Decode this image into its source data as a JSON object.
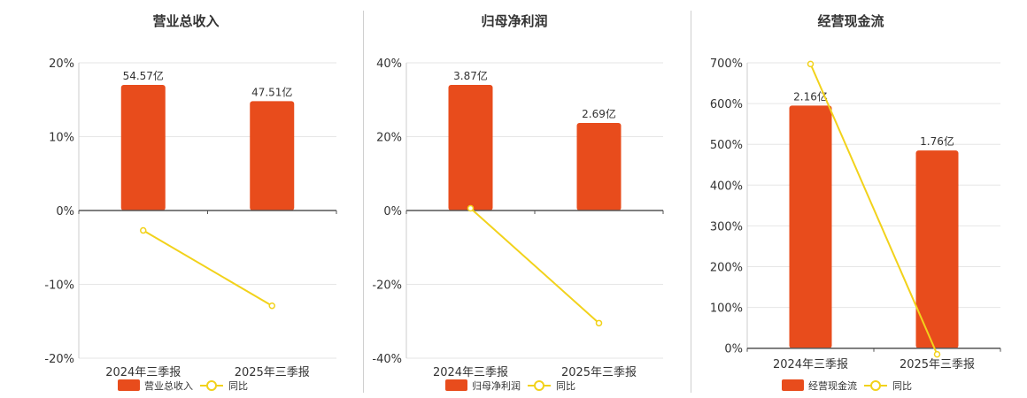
{
  "colors": {
    "bar": "#E84C1C",
    "line": "#F2D21B",
    "grid": "#E6E6E6",
    "axis": "#555555",
    "text": "#333333"
  },
  "chart_data": [
    {
      "type": "bar",
      "title": "营业总收入",
      "categories": [
        "2024年三季报",
        "2025年三季报"
      ],
      "series": [
        {
          "name": "营业总收入",
          "type": "bar",
          "values": [
            17.0,
            14.8
          ],
          "labels": [
            "54.57亿",
            "47.51亿"
          ]
        },
        {
          "name": "同比",
          "type": "line",
          "values": [
            -2.7,
            -12.9
          ]
        }
      ],
      "ylim": [
        -20,
        20
      ],
      "yticks": [
        -20,
        -10,
        0,
        10,
        20
      ],
      "ytick_labels": [
        "-20%",
        "-10%",
        "0%",
        "10%",
        "20%"
      ],
      "grid": true,
      "legend": "bottom-center"
    },
    {
      "type": "bar",
      "title": "归母净利润",
      "categories": [
        "2024年三季报",
        "2025年三季报"
      ],
      "series": [
        {
          "name": "归母净利润",
          "type": "bar",
          "values": [
            34.0,
            23.7
          ],
          "labels": [
            "3.87亿",
            "2.69亿"
          ]
        },
        {
          "name": "同比",
          "type": "line",
          "values": [
            0.6,
            -30.5
          ]
        }
      ],
      "ylim": [
        -40,
        40
      ],
      "yticks": [
        -40,
        -20,
        0,
        20,
        40
      ],
      "ytick_labels": [
        "-40%",
        "-20%",
        "0%",
        "20%",
        "40%"
      ],
      "grid": true,
      "legend": "bottom-center"
    },
    {
      "type": "bar",
      "title": "经营现金流",
      "categories": [
        "2024年三季报",
        "2025年三季报"
      ],
      "series": [
        {
          "name": "经营现金流",
          "type": "bar",
          "values": [
            595,
            485
          ],
          "labels": [
            "2.16亿",
            "1.76亿"
          ]
        },
        {
          "name": "同比",
          "type": "line",
          "values": [
            697,
            -15
          ]
        }
      ],
      "ylim": [
        -5,
        700
      ],
      "yticks": [
        0,
        100,
        200,
        300,
        400,
        500,
        600,
        700
      ],
      "ytick_labels": [
        "0%",
        "100%",
        "200%",
        "300%",
        "400%",
        "500%",
        "600%",
        "700%"
      ],
      "grid": true,
      "legend": "bottom-center"
    }
  ]
}
